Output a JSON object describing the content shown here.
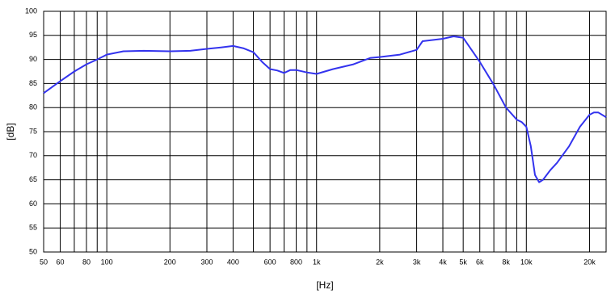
{
  "chart_data": {
    "type": "line",
    "x_label": "[Hz]",
    "y_label": "[dB]",
    "log_x": true,
    "grid": true,
    "xlim": [
      50,
      24000
    ],
    "ylim": [
      50,
      100
    ],
    "yticks": [
      50,
      55,
      60,
      65,
      70,
      75,
      80,
      85,
      90,
      95,
      100
    ],
    "xticks": [
      50,
      60,
      80,
      100,
      200,
      300,
      400,
      600,
      800,
      {
        "value": 1000,
        "label": "1k"
      },
      {
        "value": 2000,
        "label": "2k"
      },
      {
        "value": 3000,
        "label": "3k"
      },
      {
        "value": 4000,
        "label": "4k"
      },
      {
        "value": 5000,
        "label": "5k"
      },
      {
        "value": 6000,
        "label": "6k"
      },
      {
        "value": 8000,
        "label": "8k"
      },
      {
        "value": 10000,
        "label": "10k"
      },
      {
        "value": 20000,
        "label": "20k"
      }
    ],
    "xminor": [
      70,
      90,
      500,
      700,
      900,
      7000,
      9000
    ],
    "series": [
      {
        "color": "#3333ee",
        "x": [
          50,
          60,
          70,
          80,
          90,
          100,
          120,
          150,
          200,
          250,
          300,
          350,
          400,
          450,
          500,
          550,
          600,
          650,
          700,
          750,
          800,
          900,
          1000,
          1200,
          1500,
          1800,
          2000,
          2500,
          3000,
          3200,
          4000,
          4500,
          5000,
          6000,
          7000,
          8000,
          9000,
          9500,
          10000,
          10500,
          11000,
          11500,
          12000,
          13000,
          14000,
          16000,
          18000,
          20000,
          21000,
          22000,
          24000
        ],
        "values": [
          83,
          85.5,
          87.5,
          89,
          90,
          91,
          91.7,
          91.8,
          91.7,
          91.8,
          92.2,
          92.5,
          92.8,
          92.3,
          91.5,
          89.5,
          88,
          87.7,
          87.2,
          87.8,
          87.8,
          87.3,
          87,
          88,
          89,
          90.3,
          90.5,
          91,
          92,
          93.8,
          94.3,
          94.8,
          94.5,
          89.5,
          84.7,
          80,
          77.5,
          77,
          76,
          72,
          66,
          64.5,
          65,
          67,
          68.5,
          72,
          76,
          78.5,
          79,
          79,
          78
        ]
      }
    ]
  }
}
